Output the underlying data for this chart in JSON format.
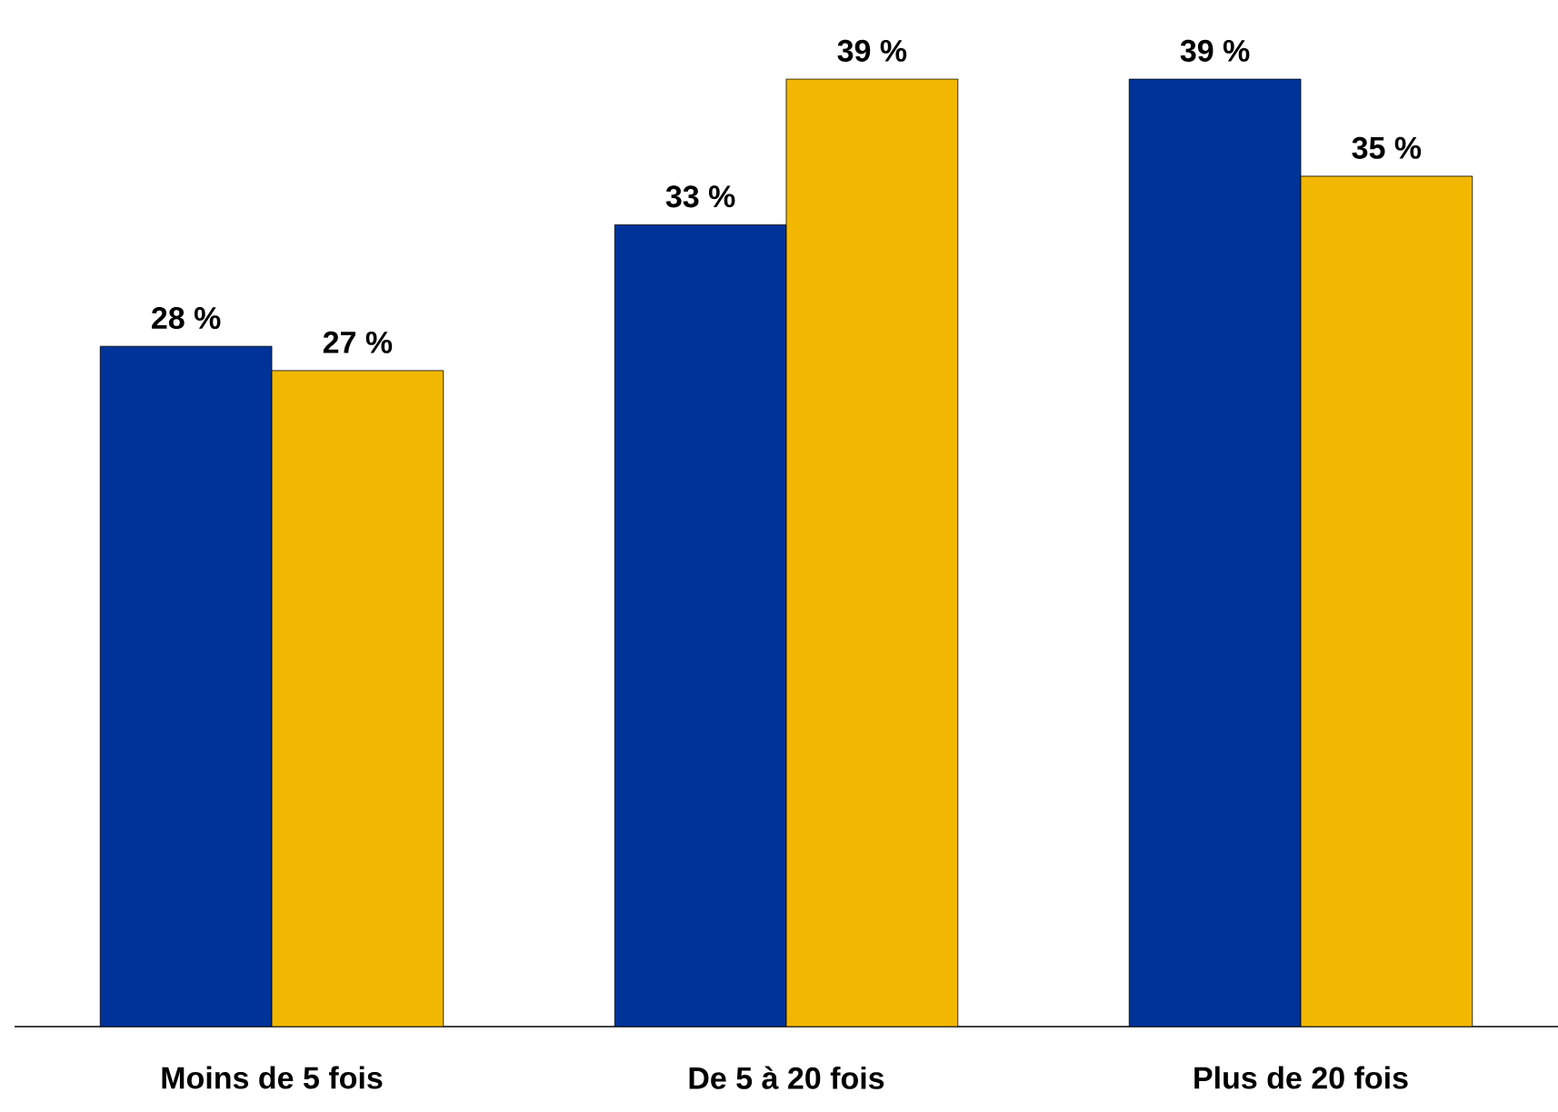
{
  "chart_data": {
    "type": "bar",
    "categories": [
      "Moins de 5 fois",
      "De 5 à 20 fois",
      "Plus de 20 fois"
    ],
    "series": [
      {
        "color": "#003399",
        "values": [
          28,
          33,
          39
        ],
        "value_labels": [
          "28 %",
          "33 %",
          "39 %"
        ]
      },
      {
        "color": "#f2b700",
        "values": [
          27,
          39,
          35
        ],
        "value_labels": [
          "27 %",
          "39 %",
          "35 %"
        ]
      }
    ],
    "tick_labels": "x"
  }
}
